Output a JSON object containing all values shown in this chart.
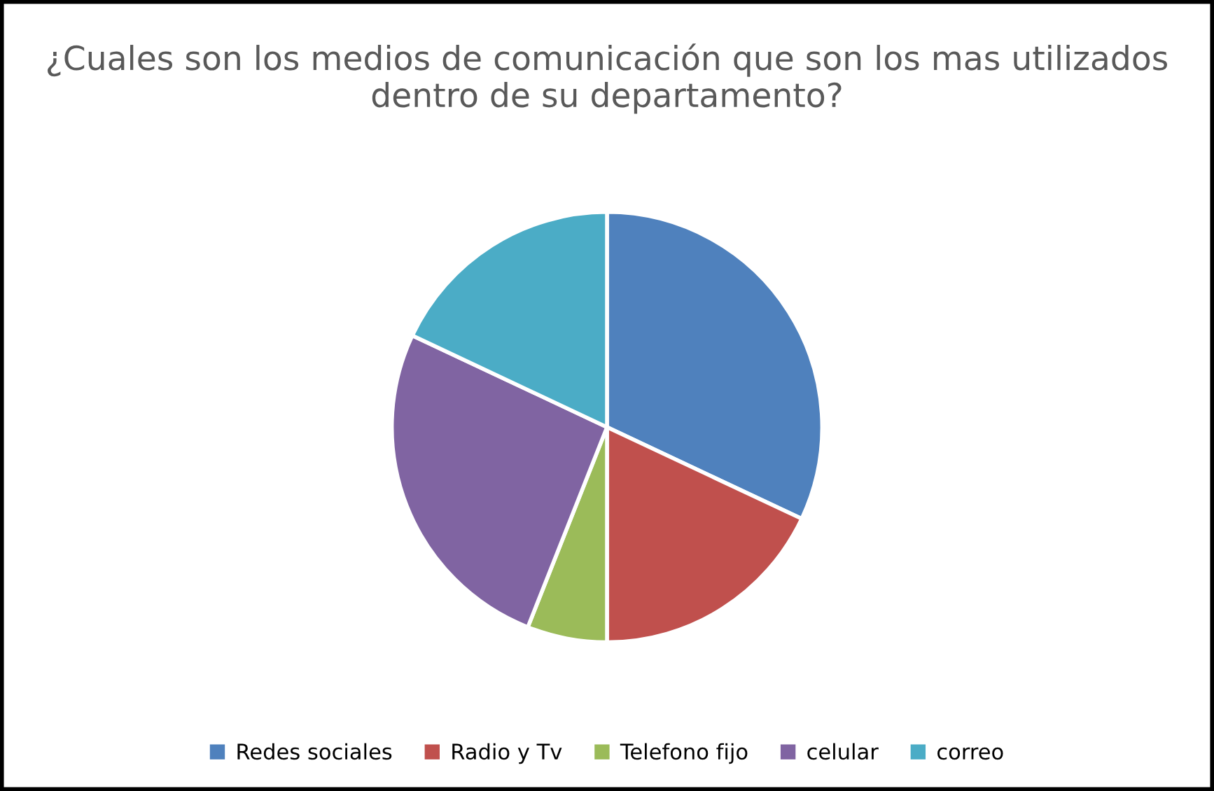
{
  "chart_data": {
    "type": "pie",
    "title": "¿Cuales son los medios de comunicación que son los mas utilizados dentro de su departamento?",
    "categories": [
      "Redes sociales",
      "Radio y Tv",
      "Telefono fijo",
      "celular",
      "correo"
    ],
    "values": [
      32,
      18,
      6,
      26,
      18
    ],
    "colors": [
      "#4f81bd",
      "#c0504d",
      "#9bbb59",
      "#8064a2",
      "#4bacc6"
    ],
    "legend": "bottom"
  }
}
